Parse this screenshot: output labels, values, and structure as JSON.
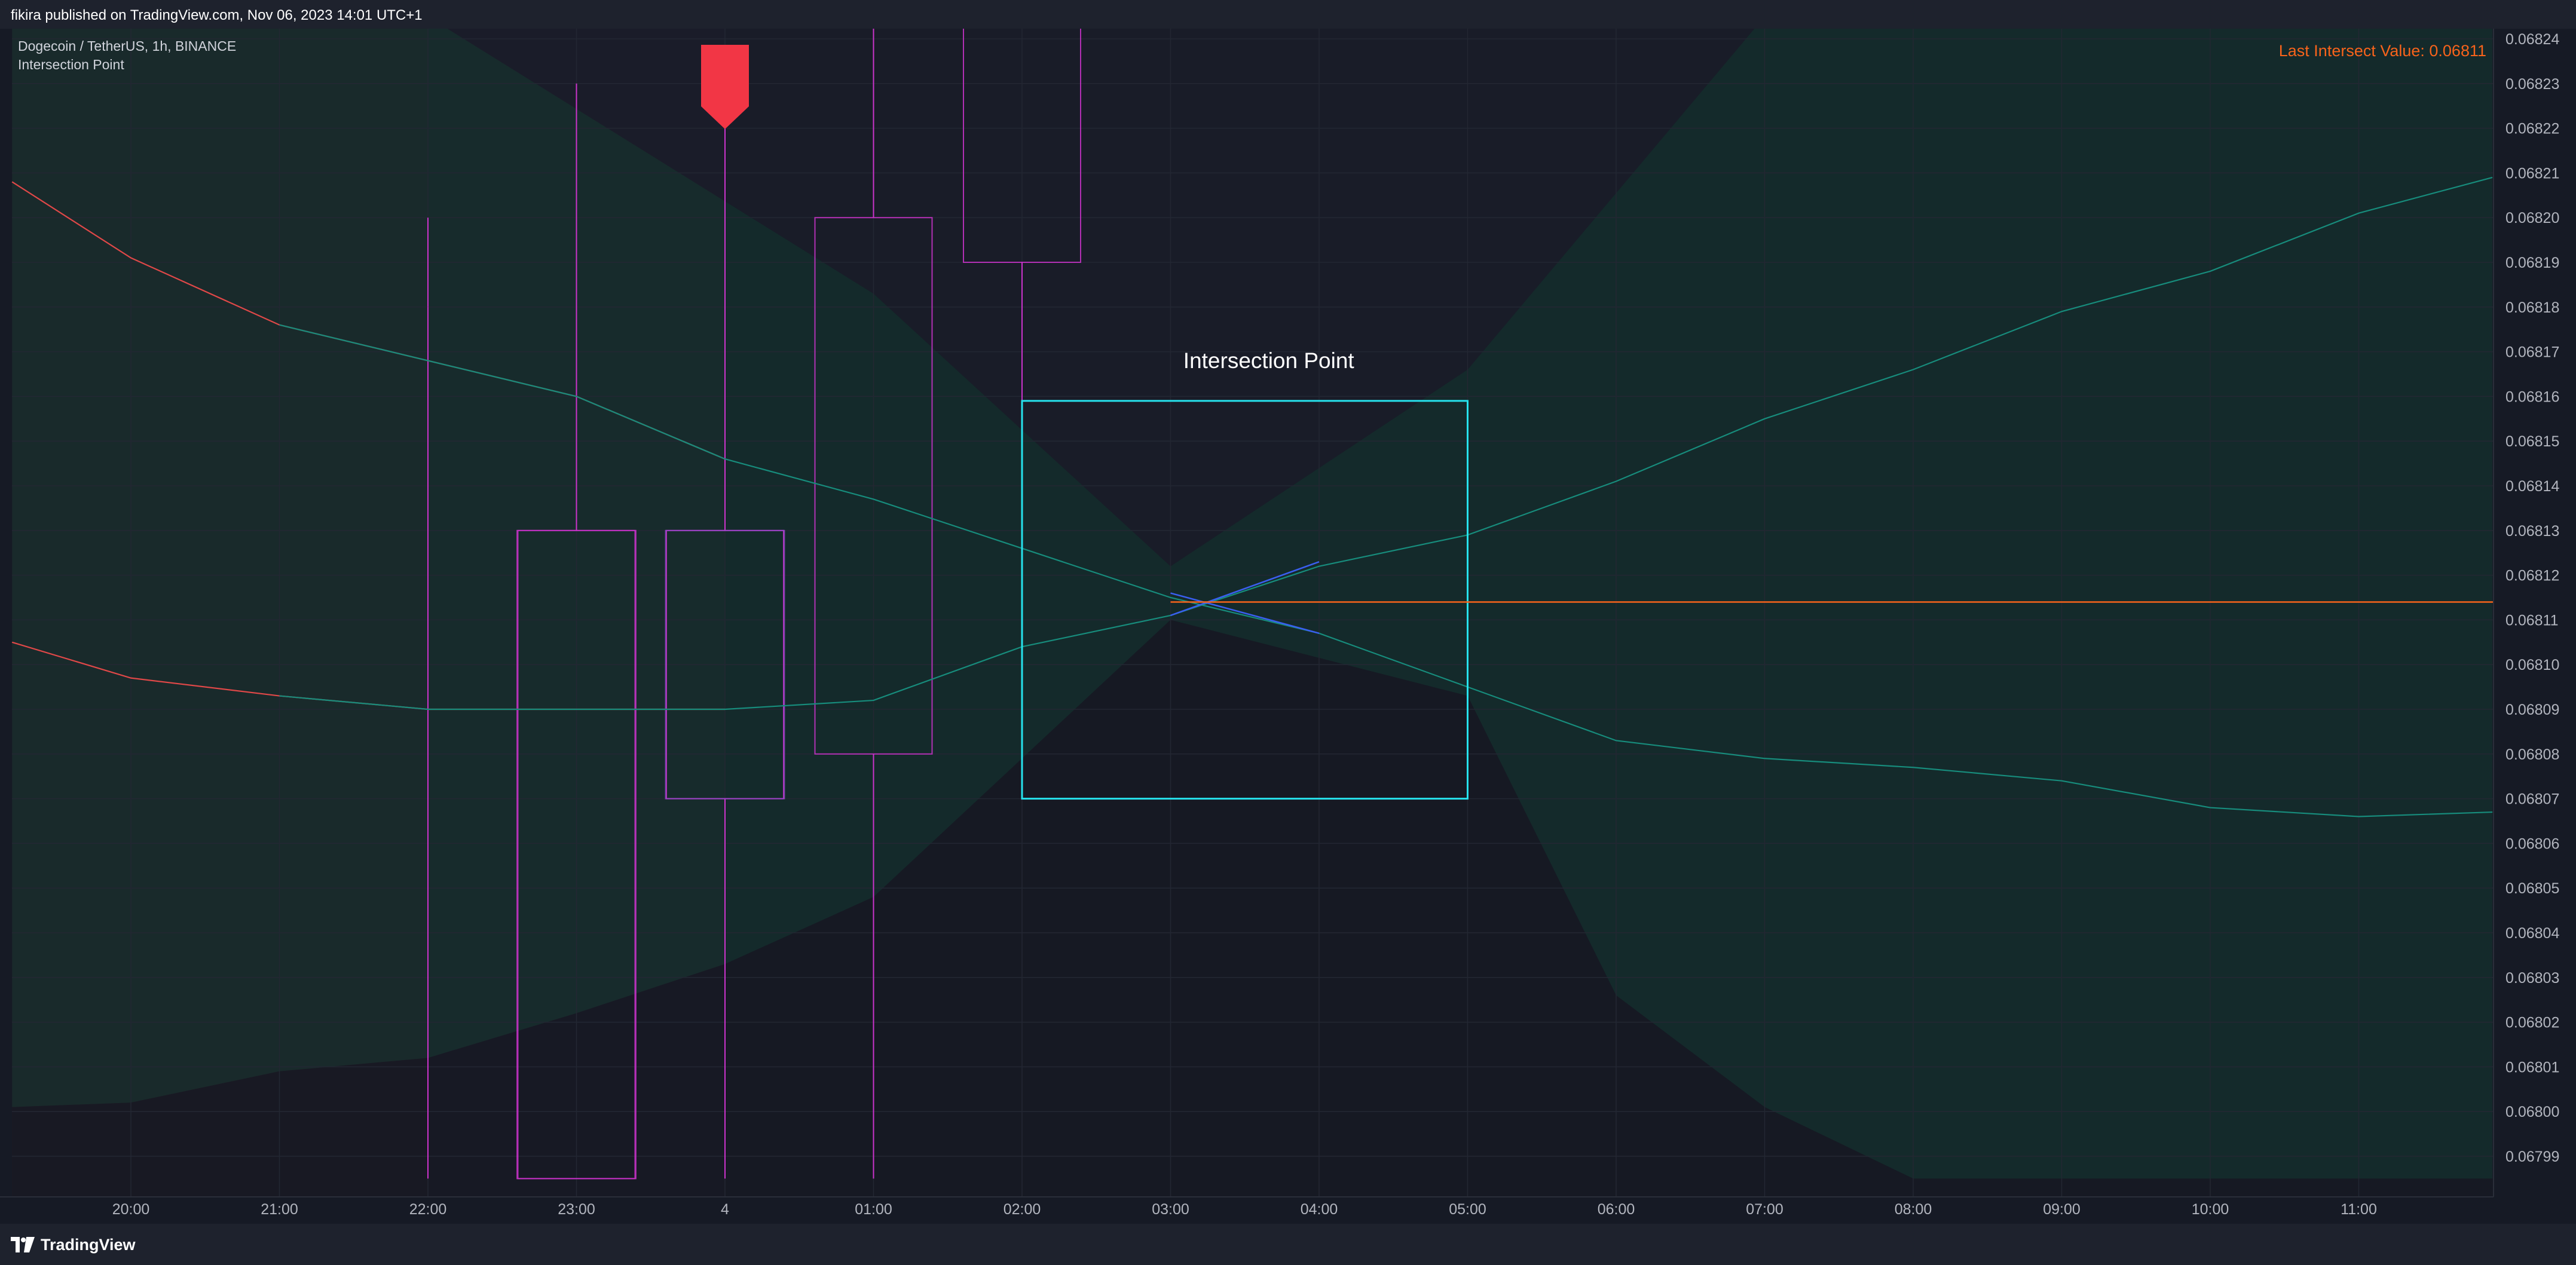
{
  "header": {
    "publish_line": "fikira published on TradingView.com, Nov 06, 2023 14:01 UTC+1"
  },
  "legend": {
    "symbol_line": "Dogecoin / TetherUS, 1h, BINANCE",
    "indicator_name": "Intersection Point"
  },
  "footer": {
    "brand": "TradingView",
    "logo_icon": "tradingview-logo-icon"
  },
  "chart_data": {
    "type": "line",
    "title": "",
    "xlabel": "",
    "ylabel": "",
    "x_ticks": [
      "20:00",
      "21:00",
      "22:00",
      "23:00",
      "4",
      "01:00",
      "02:00",
      "03:00",
      "04:00",
      "05:00",
      "06:00",
      "07:00",
      "08:00",
      "09:00",
      "10:00",
      "11:00"
    ],
    "y_ticks": [
      "0.06824",
      "0.06823",
      "0.06822",
      "0.06821",
      "0.06820",
      "0.06819",
      "0.06818",
      "0.06817",
      "0.06816",
      "0.06815",
      "0.06814",
      "0.06813",
      "0.06812",
      "0.06811",
      "0.06810",
      "0.06809",
      "0.06808",
      "0.06807",
      "0.06806",
      "0.06805",
      "0.06804",
      "0.06803",
      "0.06802",
      "0.06801",
      "0.06800",
      "0.06799"
    ],
    "ylim": [
      0.067985,
      0.068245
    ],
    "xlim_hours": [
      -0.8,
      15.9
    ],
    "grid": true,
    "annotation_label": "Intersection Point",
    "last_intersect_text": "Last Intersect Value: 0.06811",
    "last_intersect_value": 0.068114,
    "colors": {
      "background": "#161a25",
      "grid": "#232733",
      "axis_text": "#b2b5be",
      "red_line": "#e04848",
      "teal_line": "#178c7c",
      "candle": "#cc33cc",
      "box": "#26e2ed",
      "intersect_line": "#f7631b",
      "blue_line": "#3a5ff0",
      "signal": "#f23645"
    },
    "series": [
      {
        "role": "upper-line",
        "x": [
          -0.8,
          0,
          1,
          2,
          3,
          4,
          5,
          6,
          7,
          8,
          9,
          10,
          11,
          12,
          13,
          14,
          15,
          15.9
        ],
        "y": [
          0.068208,
          0.068191,
          0.068176,
          0.068168,
          0.06816,
          0.068146,
          0.068137,
          0.068126,
          0.068115,
          0.068107,
          0.068095,
          0.068083,
          0.068079,
          0.068077,
          0.068074,
          0.068068,
          0.068066,
          0.068067
        ]
      },
      {
        "role": "lower-line",
        "x": [
          -0.8,
          0,
          1,
          2,
          3,
          4,
          5,
          6,
          7,
          8,
          9,
          10,
          11,
          12,
          13,
          14,
          15,
          15.9
        ],
        "y": [
          0.068105,
          0.068097,
          0.068093,
          0.06809,
          0.06809,
          0.06809,
          0.068092,
          0.068104,
          0.068111,
          0.068122,
          0.068129,
          0.068141,
          0.068155,
          0.068166,
          0.068179,
          0.068188,
          0.068201,
          0.068209
        ]
      }
    ],
    "band_outer_upper": {
      "x": [
        -0.8,
        2,
        5,
        7,
        9,
        11,
        15.9
      ],
      "y": [
        0.068245,
        0.068245,
        0.068183,
        0.068122,
        0.068166,
        0.068245,
        0.068245
      ]
    },
    "band_outer_lower": {
      "x": [
        -0.8,
        0,
        1,
        2,
        3,
        4,
        5,
        7,
        9,
        10,
        11,
        12,
        15.9
      ],
      "y": [
        0.068001,
        0.068002,
        0.068009,
        0.068012,
        0.068022,
        0.068033,
        0.068048,
        0.06811,
        0.068093,
        0.068026,
        0.068001,
        0.067985,
        0.067985
      ]
    },
    "candles": [
      {
        "x": 2,
        "open": 0.06818,
        "close": 0.06818,
        "high": 0.0682,
        "low": 0.067985
      },
      {
        "x": 3,
        "open": 0.06813,
        "close": 0.067985,
        "high": 0.06823,
        "low": 0.067985
      },
      {
        "x": 4,
        "open": 0.06807,
        "close": 0.06813,
        "high": 0.06822,
        "low": 0.067985
      },
      {
        "x": 5,
        "open": 0.06808,
        "close": 0.0682,
        "high": 0.068245,
        "low": 0.067985
      },
      {
        "x": 6,
        "open": 0.06819,
        "close": 0.068245,
        "high": 0.068245,
        "low": 0.06813
      }
    ],
    "signal_marker": {
      "x": 4,
      "y_top": 0.068245,
      "type": "arrow-down"
    },
    "intersection_box": {
      "x0": 6,
      "x1": 9,
      "y0": 0.06807,
      "y1": 0.068159
    },
    "intersect_level": {
      "x0": 7,
      "value": 0.068114
    },
    "blue_cross": [
      {
        "x0": 7,
        "y0": 0.068111,
        "x1": 8,
        "y1": 0.068123
      },
      {
        "x0": 7,
        "y0": 0.068116,
        "x1": 8,
        "y1": 0.068107
      }
    ],
    "red_zone": {
      "x0": -0.8,
      "x1": 4
    }
  }
}
